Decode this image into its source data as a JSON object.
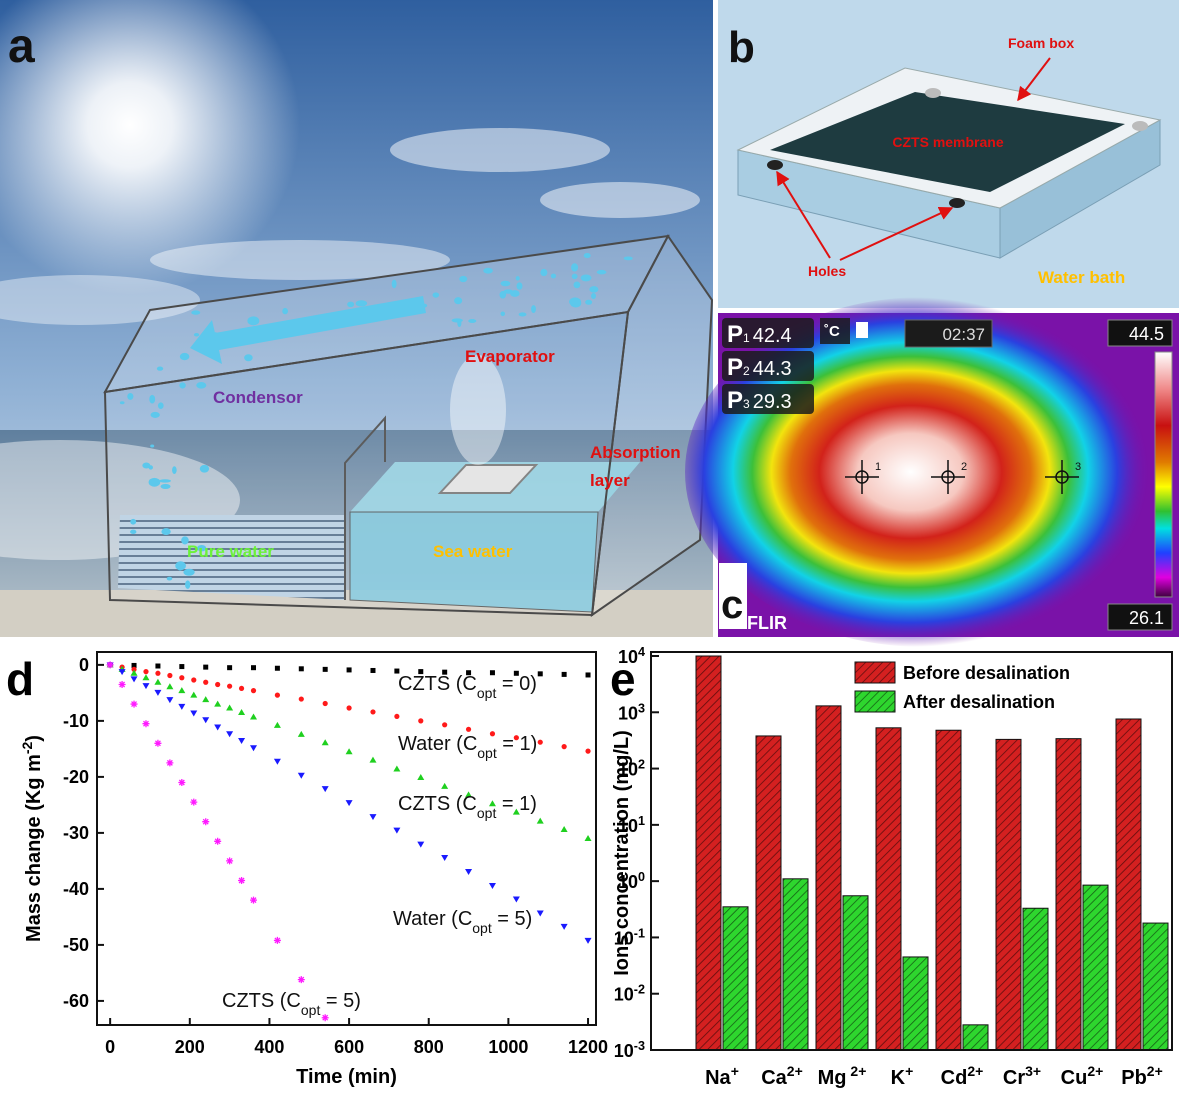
{
  "panel_a": {
    "label": "a",
    "labels": [
      "Evaporator",
      "Condensor",
      "Absorption",
      "layer",
      "Pure water",
      "Sea water"
    ]
  },
  "panel_b": {
    "label": "b",
    "labels": [
      "Foam box",
      "CZTS membrane",
      "Holes",
      "Water bath"
    ]
  },
  "panel_c": {
    "label": "c",
    "readings": [
      {
        "name": "P",
        "index": "1",
        "value": 42.4
      },
      {
        "name": "P",
        "index": "2",
        "value": 44.3
      },
      {
        "name": "P",
        "index": "3",
        "value": 29.3
      }
    ],
    "unit": "˚C",
    "time": "02:37",
    "scale_max": 44.5,
    "scale_min": 26.1,
    "brand": "FLIR"
  },
  "chart_data": [
    {
      "type": "scatter",
      "panel": "d",
      "xlabel": "Time (min)",
      "ylabel": {
        "text": "Mass change (Kg m",
        "sup": "-2",
        "post": ")"
      },
      "xlim": [
        -33,
        1220
      ],
      "ylim": [
        -64.3,
        2.3
      ],
      "xticks": [
        0,
        200,
        400,
        600,
        800,
        1000,
        1200
      ],
      "yticks": [
        0,
        -10,
        -20,
        -30,
        -40,
        -50,
        -60
      ],
      "series": [
        {
          "name": {
            "text": "CZTS (C",
            "sub": "opt",
            "post": " = 0)"
          },
          "color": "#000000",
          "marker": "square",
          "x": [
            0,
            60,
            120,
            180,
            240,
            300,
            360,
            420,
            480,
            540,
            600,
            660,
            720,
            780,
            840,
            900,
            960,
            1020,
            1080,
            1140,
            1200
          ],
          "values": [
            0,
            -0.1,
            -0.2,
            -0.3,
            -0.4,
            -0.5,
            -0.5,
            -0.6,
            -0.7,
            -0.8,
            -0.9,
            -1.0,
            -1.1,
            -1.2,
            -1.3,
            -1.4,
            -1.4,
            -1.5,
            -1.6,
            -1.7,
            -1.8
          ]
        },
        {
          "name": {
            "text": "Water (C",
            "sub": "opt",
            "post": " = 1)"
          },
          "color": "#ff1a1a",
          "marker": "circle",
          "x": [
            0,
            30,
            60,
            90,
            120,
            150,
            180,
            210,
            240,
            270,
            300,
            330,
            360,
            420,
            480,
            540,
            600,
            660,
            720,
            780,
            840,
            900,
            960,
            1020,
            1080,
            1140,
            1200
          ],
          "values": [
            0,
            -0.4,
            -0.8,
            -1.2,
            -1.5,
            -1.9,
            -2.3,
            -2.7,
            -3.1,
            -3.5,
            -3.8,
            -4.2,
            -4.6,
            -5.4,
            -6.1,
            -6.9,
            -7.7,
            -8.4,
            -9.2,
            -10.0,
            -10.7,
            -11.5,
            -12.3,
            -13.0,
            -13.8,
            -14.6,
            -15.4
          ]
        },
        {
          "name": {
            "text": "CZTS (C",
            "sub": "opt",
            "post": " = 1)"
          },
          "color": "#1fd01f",
          "marker": "triangle",
          "x": [
            0,
            30,
            60,
            90,
            120,
            150,
            180,
            210,
            240,
            270,
            300,
            330,
            360,
            420,
            480,
            540,
            600,
            660,
            720,
            780,
            840,
            900,
            960,
            1020,
            1080,
            1140,
            1200
          ],
          "values": [
            0,
            -0.8,
            -1.5,
            -2.3,
            -3.1,
            -3.9,
            -4.6,
            -5.4,
            -6.2,
            -7.0,
            -7.7,
            -8.5,
            -9.3,
            -10.8,
            -12.4,
            -13.9,
            -15.5,
            -17.0,
            -18.6,
            -20.1,
            -21.7,
            -23.2,
            -24.8,
            -26.3,
            -27.9,
            -29.4,
            -31.0
          ]
        },
        {
          "name": {
            "text": "Water (C",
            "sub": "opt",
            "post": " = 5)"
          },
          "color": "#1a1aff",
          "marker": "triangle-down",
          "x": [
            0,
            30,
            60,
            90,
            120,
            150,
            180,
            210,
            240,
            270,
            300,
            330,
            360,
            420,
            480,
            540,
            600,
            660,
            720,
            780,
            840,
            900,
            960,
            1020,
            1080,
            1140,
            1200
          ],
          "values": [
            0,
            -1.2,
            -2.5,
            -3.7,
            -4.9,
            -6.2,
            -7.4,
            -8.6,
            -9.8,
            -11.1,
            -12.3,
            -13.5,
            -14.8,
            -17.2,
            -19.7,
            -22.1,
            -24.6,
            -27.1,
            -29.5,
            -32.0,
            -34.4,
            -36.9,
            -39.4,
            -41.8,
            -44.3,
            -46.7,
            -49.2
          ]
        },
        {
          "name": {
            "text": "CZTS (C",
            "sub": "opt",
            "post": " = 5)"
          },
          "color": "#ff1aff",
          "marker": "star",
          "x": [
            0,
            30,
            60,
            90,
            120,
            150,
            180,
            210,
            240,
            270,
            300,
            330,
            360,
            420,
            480,
            540
          ],
          "values": [
            0,
            -3.5,
            -7.0,
            -10.5,
            -14.0,
            -17.5,
            -21.0,
            -24.5,
            -28.0,
            -31.5,
            -35.0,
            -38.5,
            -42.0,
            -49.2,
            -56.2,
            -63.0
          ]
        }
      ]
    },
    {
      "type": "bar",
      "panel": "e",
      "ylabel": "Ions concentration (mg/L)",
      "log_scale": true,
      "legend": "upper right",
      "ylim": [
        0.001,
        10000
      ],
      "yticks": [
        {
          "value": 0.001,
          "label": "10",
          "sup": "-3"
        },
        {
          "value": 0.01,
          "label": "10",
          "sup": "-2"
        },
        {
          "value": 0.1,
          "label": "10",
          "sup": "-1"
        },
        {
          "value": 1,
          "label": "10",
          "sup": "0"
        },
        {
          "value": 10,
          "label": "10",
          "sup": "1"
        },
        {
          "value": 100,
          "label": "10",
          "sup": "2"
        },
        {
          "value": 1000,
          "label": "10",
          "sup": "3"
        },
        {
          "value": 10000,
          "label": "10",
          "sup": "4"
        }
      ],
      "categories": [
        {
          "text": "Na",
          "sup": "+"
        },
        {
          "text": "Ca",
          "sup": "2+"
        },
        {
          "text": "Mg",
          "sup": " 2+"
        },
        {
          "text": "K",
          "sup": "+"
        },
        {
          "text": "Cd",
          "sup": "2+"
        },
        {
          "text": "Cr",
          "sup": "3+"
        },
        {
          "text": "Cu",
          "sup": "2+"
        },
        {
          "text": "Pb",
          "sup": "2+"
        }
      ],
      "series": [
        {
          "name": "Before desalination",
          "color": "#d42020",
          "values": [
            10000,
            380,
            1300,
            530,
            480,
            330,
            340,
            760
          ]
        },
        {
          "name": "After desalination",
          "color": "#2ed62e",
          "values": [
            0.35,
            1.1,
            0.55,
            0.045,
            0.0028,
            0.33,
            0.85,
            0.18
          ]
        }
      ]
    }
  ]
}
